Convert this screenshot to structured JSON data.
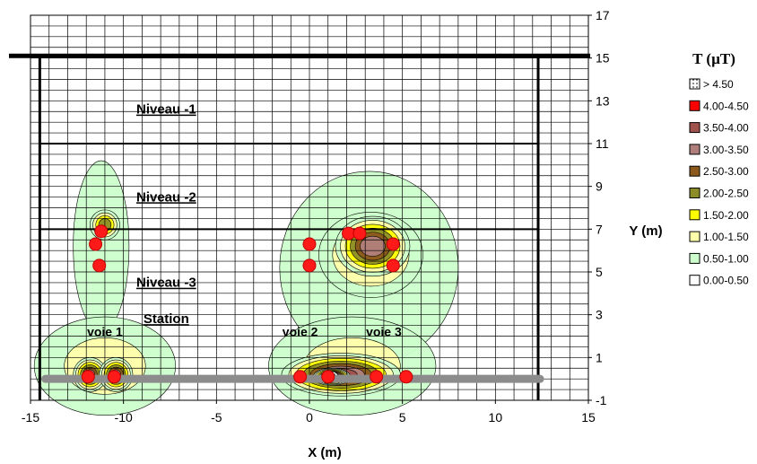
{
  "chart_data": {
    "type": "heatmap",
    "title": "",
    "xlabel": "X (m)",
    "ylabel": "Y (m)",
    "xlim": [
      -15,
      15
    ],
    "ylim": [
      -1,
      17
    ],
    "x_ticks": [
      -15,
      -10,
      -5,
      0,
      5,
      10,
      15
    ],
    "y_ticks": [
      -1,
      1,
      3,
      5,
      7,
      9,
      11,
      13,
      15,
      17
    ],
    "grid": true,
    "legend_position": "right",
    "legend": {
      "title": "T (µT)",
      "entries": [
        {
          "label": "> 4.50",
          "color": "#ffffff",
          "pattern": "dots"
        },
        {
          "label": "4.00-4.50",
          "color": "#ff0000"
        },
        {
          "label": "3.50-4.00",
          "color": "#a0524d"
        },
        {
          "label": "3.00-3.50",
          "color": "#b07f7c"
        },
        {
          "label": "2.50-3.00",
          "color": "#8c5a1c"
        },
        {
          "label": "2.00-2.50",
          "color": "#8c8c28"
        },
        {
          "label": "1.50-2.00",
          "color": "#ffff00"
        },
        {
          "label": "1.00-1.50",
          "color": "#ffffaa"
        },
        {
          "label": "0.50-1.00",
          "color": "#ccffcc"
        },
        {
          "label": "0.00-0.50",
          "color": "#ffffff"
        }
      ]
    },
    "annotations": [
      {
        "text": "Niveau -1",
        "x": -7.7,
        "y": 12.4
      },
      {
        "text": "Niveau -2",
        "x": -7.7,
        "y": 8.3
      },
      {
        "text": "Niveau -3",
        "x": -7.7,
        "y": 4.3
      },
      {
        "text": "Station",
        "x": -7.7,
        "y": 2.6
      },
      {
        "text": "voie 1",
        "x": -11.0,
        "y": 2.0
      },
      {
        "text": "voie 2",
        "x": -0.5,
        "y": 2.0
      },
      {
        "text": "voie 3",
        "x": 4.0,
        "y": 2.0
      }
    ],
    "structure": {
      "ground_line_y": 15.1,
      "floor_lines_y": [
        11,
        7
      ],
      "walls_x": [
        -14.5,
        12.3
      ],
      "platform": {
        "x1": -14.2,
        "x2": 12.4,
        "y": 0
      }
    },
    "measurement_points": [
      {
        "x": -11.2,
        "y": 6.9
      },
      {
        "x": -11.5,
        "y": 6.3
      },
      {
        "x": -11.3,
        "y": 5.3
      },
      {
        "x": -11.9,
        "y": 0.1
      },
      {
        "x": -10.5,
        "y": 0.1
      },
      {
        "x": 0.0,
        "y": 6.3
      },
      {
        "x": 0.0,
        "y": 5.3
      },
      {
        "x": 2.1,
        "y": 6.8
      },
      {
        "x": 2.7,
        "y": 6.8
      },
      {
        "x": 4.5,
        "y": 6.3
      },
      {
        "x": 4.5,
        "y": 5.3
      },
      {
        "x": -0.5,
        "y": 0.1
      },
      {
        "x": 1.0,
        "y": 0.1
      },
      {
        "x": 3.6,
        "y": 0.1
      },
      {
        "x": 5.2,
        "y": 0.1
      }
    ],
    "hotspots": [
      {
        "x": -11.2,
        "y": 6.2,
        "rx": 1.5,
        "ry": 4.0,
        "level": 0.9
      },
      {
        "x": -11.0,
        "y": 7.2,
        "rx": 0.8,
        "ry": 0.7,
        "level": 2.2
      },
      {
        "x": -11.0,
        "y": 0.6,
        "rx": 3.8,
        "ry": 2.3,
        "level": 1.0
      },
      {
        "x": -11.8,
        "y": 0.2,
        "rx": 0.9,
        "ry": 0.8,
        "level": 3.0
      },
      {
        "x": -10.4,
        "y": 0.2,
        "rx": 0.9,
        "ry": 0.8,
        "level": 3.0
      },
      {
        "x": 3.2,
        "y": 5.2,
        "rx": 4.8,
        "ry": 4.5,
        "level": 0.9
      },
      {
        "x": 3.3,
        "y": 5.8,
        "rx": 2.8,
        "ry": 2.0,
        "level": 1.6
      },
      {
        "x": 3.4,
        "y": 6.2,
        "rx": 2.0,
        "ry": 1.4,
        "level": 3.2
      },
      {
        "x": 2.3,
        "y": 0.6,
        "rx": 4.5,
        "ry": 2.3,
        "level": 1.0
      },
      {
        "x": 1.7,
        "y": 0.2,
        "rx": 3.2,
        "ry": 1.0,
        "level": 3.5
      },
      {
        "x": 1.2,
        "y": 0.1,
        "rx": 1.0,
        "ry": 0.4,
        "level": 4.7
      }
    ]
  }
}
